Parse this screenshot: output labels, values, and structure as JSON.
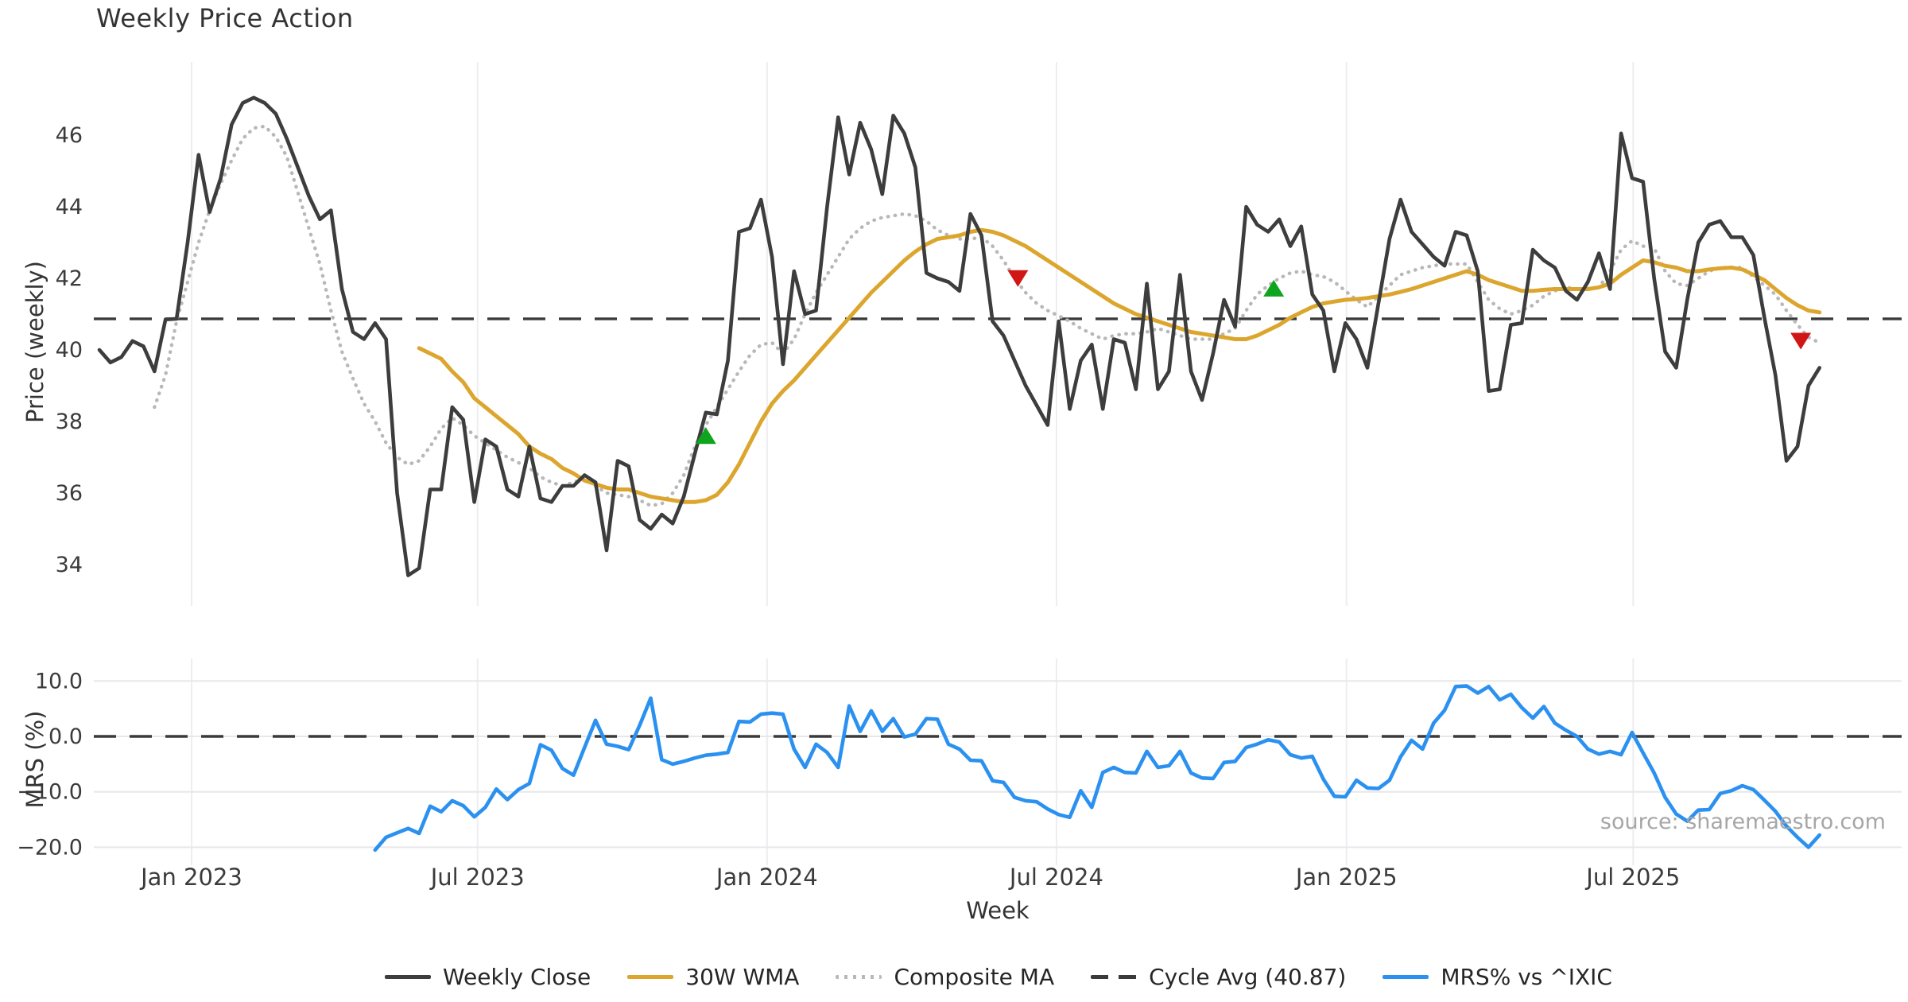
{
  "title": "Weekly Price Action",
  "source_note": "source: sharemaestro.com",
  "axes": {
    "xlabel": "Week",
    "xticks": [
      {
        "label": "Jan 2023",
        "week": 8.36
      },
      {
        "label": "Jul 2023",
        "week": 34.3
      },
      {
        "label": "Jan 2024",
        "week": 60.55
      },
      {
        "label": "Jul 2024",
        "week": 86.8
      },
      {
        "label": "Jan 2025",
        "week": 113.1
      },
      {
        "label": "Jul 2025",
        "week": 139.1
      }
    ],
    "top": {
      "ylabel": "Price (weekly)",
      "ytick_labels": [
        "46",
        "44",
        "42",
        "40",
        "38",
        "36",
        "34"
      ],
      "ytick_values": [
        46,
        44,
        42,
        40,
        38,
        36,
        34
      ]
    },
    "bottom": {
      "ylabel": "MRS (%)",
      "ytick_labels": [
        "10.0",
        "0.0",
        "−10.0",
        "−20.0"
      ],
      "ytick_values": [
        10,
        0,
        -10,
        -20
      ]
    }
  },
  "legend": [
    {
      "label": "Weekly Close",
      "style": "solid",
      "color": "#3d3d3d"
    },
    {
      "label": "30W WMA",
      "style": "solid",
      "color": "#dca62e"
    },
    {
      "label": "Composite MA",
      "style": "dotted",
      "color": "#b8b8b8"
    },
    {
      "label": "Cycle Avg (40.87)",
      "style": "dashed",
      "color": "#3a3a3a"
    },
    {
      "label": "MRS% vs ^IXIC",
      "style": "solid",
      "color": "#2b91f0"
    }
  ],
  "chart_data": {
    "type": "line",
    "x_unit": "week_index",
    "weeks_span": 157,
    "panels": [
      {
        "name": "price",
        "ylabel": "Price (weekly)",
        "ylim": [
          27.5,
          47.6
        ],
        "grid": "vertical-only"
      },
      {
        "name": "mrs",
        "ylabel": "MRS (%)",
        "ylim": [
          -23,
          14
        ],
        "grid": "horizontal+vertical"
      }
    ],
    "cycle_avg": 40.87,
    "mrs_zero_line": 0.0,
    "series": [
      {
        "name": "Weekly Close",
        "panel": "price",
        "color": "#3d3d3d",
        "style": "solid",
        "values": [
          40.0,
          39.65,
          39.8,
          40.25,
          40.1,
          39.4,
          40.85,
          40.87,
          43.0,
          45.45,
          43.85,
          44.8,
          46.3,
          46.9,
          47.05,
          46.9,
          46.6,
          45.9,
          45.1,
          44.3,
          43.65,
          43.9,
          41.7,
          40.5,
          40.3,
          40.75,
          40.3,
          36.0,
          33.7,
          33.9,
          36.1,
          36.1,
          38.4,
          38.05,
          35.75,
          37.5,
          37.3,
          36.1,
          35.9,
          37.3,
          35.85,
          35.75,
          36.2,
          36.2,
          36.5,
          36.3,
          34.4,
          36.9,
          36.75,
          35.25,
          35.0,
          35.4,
          35.15,
          35.9,
          37.1,
          38.25,
          38.2,
          39.7,
          43.3,
          43.4,
          44.2,
          42.6,
          39.6,
          42.2,
          41.0,
          41.1,
          44.0,
          46.5,
          44.9,
          46.35,
          45.6,
          44.35,
          46.55,
          46.05,
          45.1,
          42.15,
          42.0,
          41.9,
          41.65,
          43.8,
          43.2,
          40.8,
          40.4,
          39.7,
          39.0,
          38.45,
          37.9,
          40.8,
          38.35,
          39.7,
          40.15,
          38.35,
          40.3,
          40.2,
          38.9,
          41.85,
          38.9,
          39.4,
          42.1,
          39.4,
          38.6,
          39.9,
          41.4,
          40.65,
          44.0,
          43.5,
          43.3,
          43.65,
          42.9,
          43.45,
          41.55,
          41.1,
          39.4,
          40.75,
          40.3,
          39.5,
          41.3,
          43.1,
          44.2,
          43.3,
          42.95,
          42.6,
          42.35,
          43.3,
          43.2,
          42.2,
          38.85,
          38.9,
          40.7,
          40.75,
          42.8,
          42.5,
          42.3,
          41.65,
          41.4,
          41.9,
          42.7,
          41.7,
          46.05,
          44.8,
          44.7,
          42.0,
          39.95,
          39.5,
          41.4,
          43.0,
          43.5,
          43.6,
          43.15,
          43.15,
          42.65,
          40.9,
          39.3,
          36.9,
          37.3,
          39.0,
          39.5
        ]
      },
      {
        "name": "30W WMA",
        "panel": "price",
        "color": "#dca62e",
        "style": "solid",
        "values": [
          null,
          null,
          null,
          null,
          null,
          null,
          null,
          null,
          null,
          null,
          null,
          null,
          null,
          null,
          null,
          null,
          null,
          null,
          null,
          null,
          null,
          null,
          null,
          null,
          null,
          null,
          null,
          null,
          null,
          40.05,
          39.9,
          39.75,
          39.4,
          39.1,
          38.65,
          38.4,
          38.15,
          37.9,
          37.65,
          37.3,
          37.1,
          36.95,
          36.7,
          36.55,
          36.35,
          36.25,
          36.15,
          36.1,
          36.1,
          36.0,
          35.9,
          35.85,
          35.8,
          35.75,
          35.75,
          35.8,
          35.95,
          36.3,
          36.8,
          37.4,
          38.0,
          38.5,
          38.85,
          39.15,
          39.5,
          39.85,
          40.2,
          40.55,
          40.9,
          41.25,
          41.6,
          41.9,
          42.2,
          42.5,
          42.75,
          42.95,
          43.1,
          43.15,
          43.2,
          43.3,
          43.35,
          43.3,
          43.2,
          43.05,
          42.9,
          42.7,
          42.5,
          42.3,
          42.1,
          41.9,
          41.7,
          41.5,
          41.3,
          41.15,
          41.0,
          40.9,
          40.8,
          40.7,
          40.6,
          40.5,
          40.45,
          40.4,
          40.35,
          40.3,
          40.3,
          40.4,
          40.55,
          40.7,
          40.9,
          41.05,
          41.2,
          41.3,
          41.35,
          41.4,
          41.42,
          41.45,
          41.5,
          41.55,
          41.62,
          41.7,
          41.8,
          41.9,
          42.0,
          42.1,
          42.2,
          42.1,
          41.95,
          41.85,
          41.75,
          41.65,
          41.65,
          41.68,
          41.7,
          41.7,
          41.7,
          41.7,
          41.75,
          41.85,
          42.1,
          42.3,
          42.5,
          42.45,
          42.35,
          42.3,
          42.2,
          42.2,
          42.25,
          42.28,
          42.3,
          42.25,
          42.1,
          41.95,
          41.7,
          41.45,
          41.25,
          41.1,
          41.05
        ]
      },
      {
        "name": "Composite MA",
        "panel": "price",
        "color": "#b8b8b8",
        "style": "dotted",
        "values": [
          null,
          null,
          null,
          null,
          null,
          38.4,
          39.3,
          40.8,
          41.9,
          43.0,
          43.9,
          44.65,
          45.3,
          45.9,
          46.2,
          46.25,
          45.95,
          45.4,
          44.4,
          43.4,
          42.4,
          41.1,
          39.95,
          39.2,
          38.5,
          38.0,
          37.4,
          37.0,
          36.8,
          36.9,
          37.3,
          37.8,
          38.1,
          37.9,
          37.6,
          37.4,
          37.2,
          37.0,
          36.85,
          36.7,
          36.45,
          36.3,
          36.2,
          36.3,
          36.4,
          36.2,
          36.0,
          35.95,
          35.9,
          35.8,
          35.65,
          35.7,
          36.0,
          36.5,
          37.3,
          37.9,
          38.4,
          38.9,
          39.4,
          39.85,
          40.15,
          40.2,
          39.9,
          40.3,
          41.0,
          41.6,
          42.1,
          42.6,
          43.1,
          43.4,
          43.6,
          43.7,
          43.75,
          43.8,
          43.75,
          43.6,
          43.35,
          43.2,
          43.1,
          43.1,
          43.15,
          42.9,
          42.5,
          42.0,
          41.6,
          41.3,
          41.1,
          40.95,
          40.8,
          40.6,
          40.45,
          40.3,
          40.4,
          40.45,
          40.45,
          40.5,
          40.6,
          40.5,
          40.4,
          40.3,
          40.3,
          40.3,
          40.45,
          40.6,
          41.1,
          41.55,
          41.8,
          42.0,
          42.15,
          42.2,
          42.1,
          42.05,
          41.9,
          41.65,
          41.4,
          41.2,
          41.5,
          41.8,
          42.1,
          42.2,
          42.3,
          42.35,
          42.4,
          42.4,
          42.4,
          41.9,
          41.4,
          41.15,
          41.0,
          41.1,
          41.25,
          41.5,
          41.65,
          41.75,
          41.7,
          41.7,
          41.75,
          42.2,
          42.8,
          43.05,
          42.9,
          42.85,
          42.2,
          41.85,
          41.8,
          42.0,
          42.2,
          42.3,
          42.3,
          42.3,
          42.05,
          41.8,
          41.55,
          41.1,
          40.7,
          40.35,
          40.2
        ]
      },
      {
        "name": "MRS% vs ^IXIC",
        "panel": "mrs",
        "color": "#2b91f0",
        "style": "solid",
        "values": [
          null,
          null,
          null,
          null,
          null,
          null,
          null,
          null,
          null,
          null,
          null,
          null,
          null,
          null,
          null,
          null,
          null,
          null,
          null,
          null,
          null,
          null,
          null,
          null,
          null,
          -20.5,
          -18.2,
          -17.4,
          -16.6,
          -17.5,
          -12.6,
          -13.6,
          -11.6,
          -12.5,
          -14.5,
          -12.8,
          -9.5,
          -11.4,
          -9.6,
          -8.5,
          -1.5,
          -2.5,
          -5.8,
          -7.0,
          -2.0,
          2.9,
          -1.4,
          -1.8,
          -2.4,
          2.0,
          6.9,
          -4.2,
          -5.0,
          -4.5,
          -3.9,
          -3.4,
          -3.2,
          -2.9,
          2.7,
          2.6,
          4.0,
          4.2,
          4.0,
          -2.3,
          -5.6,
          -1.4,
          -2.9,
          -5.6,
          5.5,
          0.9,
          4.6,
          0.9,
          3.2,
          -0.1,
          0.4,
          3.2,
          3.1,
          -1.4,
          -2.3,
          -4.3,
          -4.4,
          -8.0,
          -8.3,
          -11.0,
          -11.6,
          -11.8,
          -13.1,
          -14.1,
          -14.6,
          -9.8,
          -12.8,
          -6.5,
          -5.6,
          -6.5,
          -6.6,
          -2.7,
          -5.6,
          -5.3,
          -2.7,
          -6.6,
          -7.5,
          -7.6,
          -4.7,
          -4.5,
          -2.0,
          -1.4,
          -0.6,
          -1.0,
          -3.3,
          -3.9,
          -3.6,
          -7.7,
          -10.8,
          -10.9,
          -7.9,
          -9.3,
          -9.4,
          -7.9,
          -3.7,
          -0.7,
          -2.3,
          2.4,
          4.7,
          9.0,
          9.1,
          7.8,
          9.0,
          6.6,
          7.6,
          5.2,
          3.3,
          5.4,
          2.4,
          1.1,
          0.0,
          -2.3,
          -3.2,
          -2.7,
          -3.3,
          0.7,
          -3.0,
          -6.6,
          -11.0,
          -14.0,
          -15.3,
          -13.3,
          -13.2,
          -10.3,
          -9.8,
          -8.9,
          -9.6,
          -11.5,
          -13.5,
          -16.2,
          -18.2,
          -20.0,
          -17.8
        ]
      }
    ],
    "markers": [
      {
        "week": 55.0,
        "value": 37.55,
        "type": "buy",
        "color": "#0fa41d"
      },
      {
        "week": 83.3,
        "value": 42.05,
        "type": "sell",
        "color": "#d11616"
      },
      {
        "week": 106.5,
        "value": 41.67,
        "type": "buy",
        "color": "#0fa41d"
      },
      {
        "week": 154.3,
        "value": 40.3,
        "type": "sell",
        "color": "#d11616"
      }
    ],
    "grid_color_vertical": "#ededf2",
    "grid_color_horizontal": "#e8e8ea"
  }
}
